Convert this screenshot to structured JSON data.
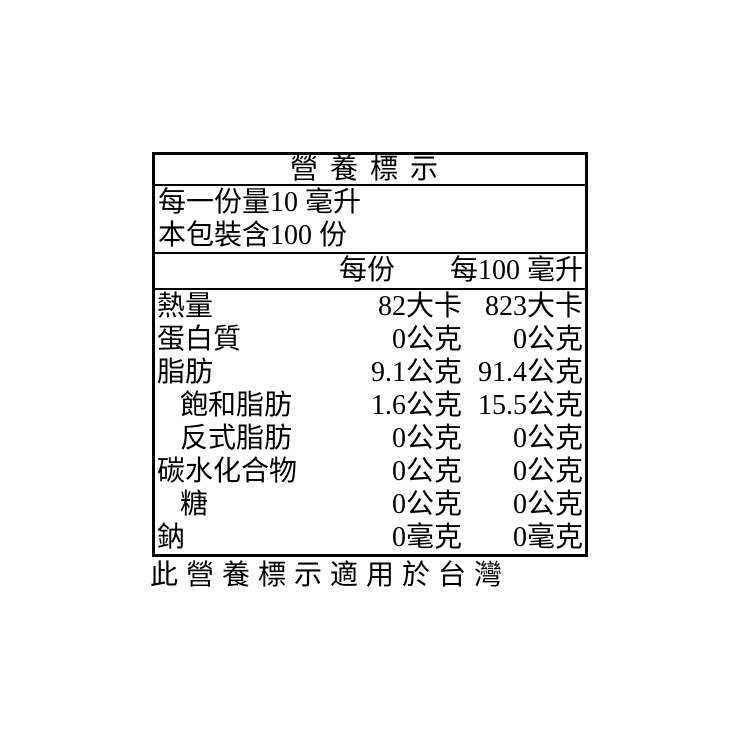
{
  "nutrition_label": {
    "title": "營養標示",
    "serving_size_line": "每一份量10 毫升",
    "servings_per_package_line": "本包裝含100 份",
    "column_headers": {
      "per_serving": "每份",
      "per_100ml": "每100 毫升"
    },
    "rows": [
      {
        "name": "熱量",
        "indent": false,
        "per_serving": "82大卡",
        "per_100ml": "823大卡"
      },
      {
        "name": "蛋白質",
        "indent": false,
        "per_serving": "0公克",
        "per_100ml": "0公克"
      },
      {
        "name": "脂肪",
        "indent": false,
        "per_serving": "9.1公克",
        "per_100ml": "91.4公克"
      },
      {
        "name": "飽和脂肪",
        "indent": true,
        "per_serving": "1.6公克",
        "per_100ml": "15.5公克"
      },
      {
        "name": "反式脂肪",
        "indent": true,
        "per_serving": "0公克",
        "per_100ml": "0公克"
      },
      {
        "name": "碳水化合物",
        "indent": false,
        "per_serving": "0公克",
        "per_100ml": "0公克"
      },
      {
        "name": "糖",
        "indent": true,
        "per_serving": "0公克",
        "per_100ml": "0公克"
      },
      {
        "name": "鈉",
        "indent": false,
        "per_serving": "0毫克",
        "per_100ml": "0毫克"
      }
    ],
    "footnote": "此營養標示適用於台灣",
    "colors": {
      "text": "#000000",
      "border": "#000000",
      "background": "#ffffff"
    }
  }
}
